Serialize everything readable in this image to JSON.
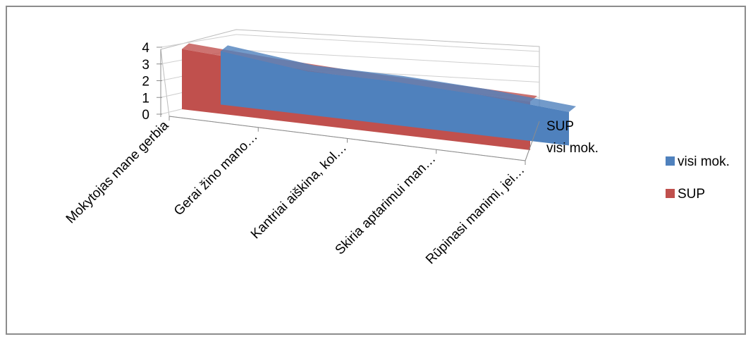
{
  "chart_data": {
    "type": "area",
    "view": "3d",
    "categories": [
      "Mokytojas mane gerbia",
      "Gerai žino mano…",
      "Kantriai aiškina, kol…",
      "Skiria aptarimui man…",
      "Rūpinasi manimi, jei…"
    ],
    "series": [
      {
        "name": "visi mok.",
        "values": [
          3.2,
          2.6,
          2.6,
          2.4,
          2.0
        ]
      },
      {
        "name": "SUP",
        "values": [
          3.6,
          3.3,
          3.1,
          3.0,
          2.9
        ]
      }
    ],
    "depth_labels": [
      "SUP",
      "visi mok."
    ],
    "y_ticks": [
      "0",
      "1",
      "2",
      "3",
      "4"
    ],
    "ylim": [
      0,
      4
    ],
    "legend": {
      "position": "right",
      "order": [
        "visi mok.",
        "SUP"
      ]
    },
    "colors": {
      "visi mok.": "#4f81bd",
      "SUP": "#c0504d"
    },
    "grid": true
  }
}
